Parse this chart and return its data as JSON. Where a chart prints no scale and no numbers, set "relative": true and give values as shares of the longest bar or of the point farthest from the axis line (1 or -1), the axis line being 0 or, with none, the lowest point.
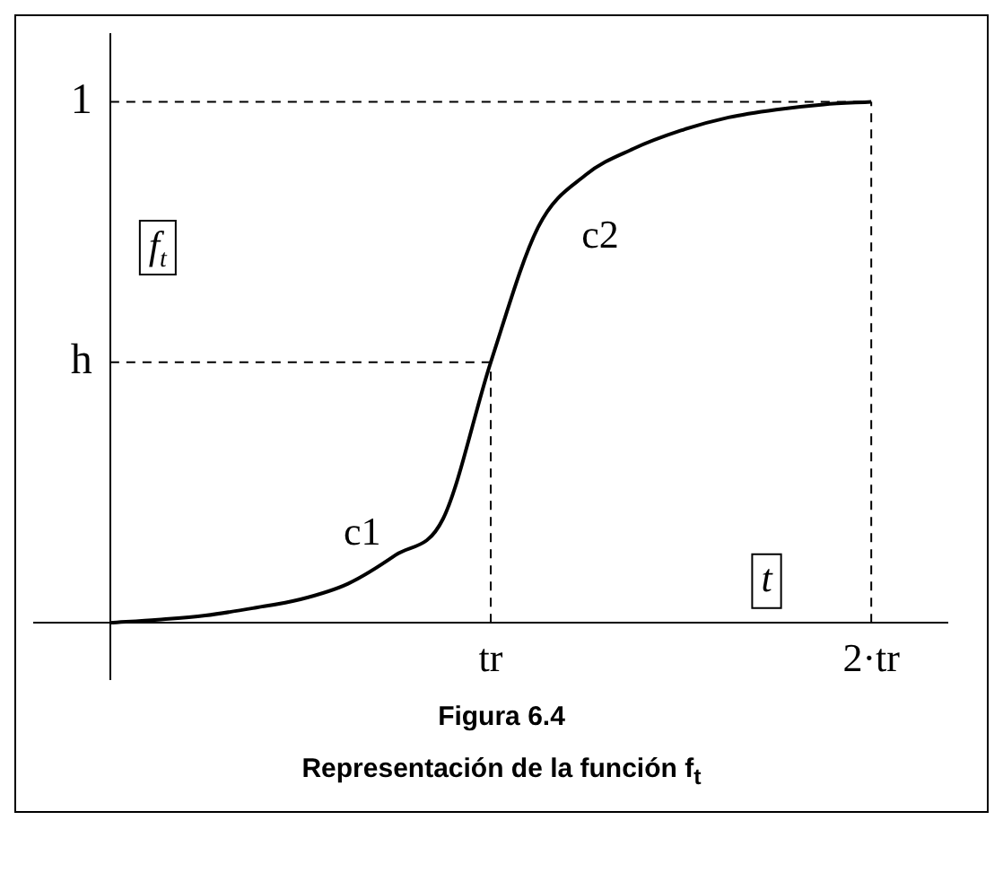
{
  "chart_data": {
    "type": "line",
    "relative": true,
    "xlabel": "t",
    "ylabel": "f$_{t}$",
    "categories": [
      null,
      null,
      null,
      null,
      null,
      null,
      null,
      null,
      "tr",
      null,
      null,
      null,
      null,
      null,
      null,
      null,
      "2·tr"
    ],
    "series": [
      {
        "color": "#000000",
        "values": [
          0,
          0.006,
          0.014,
          0.028,
          0.045,
          0.075,
          0.13,
          0.2,
          0.5,
          0.76,
          0.86,
          0.91,
          0.945,
          0.97,
          0.985,
          0.995,
          1
        ]
      }
    ],
    "ref_lines": [
      {
        "axis": "y",
        "value": 1,
        "label": "1",
        "line_style": "dashed"
      },
      {
        "axis": "y",
        "value": 0.5,
        "label": "h",
        "line_style": "dashed"
      },
      {
        "axis": "x",
        "value": "tr",
        "line_style": "dashed"
      },
      {
        "axis": "x",
        "value": "2·tr",
        "line_style": "dashed"
      }
    ],
    "annotations": [
      "c1",
      "c2",
      "Figura 6.4",
      "Representación de la función f$_{t}$"
    ],
    "grid": false,
    "legend": false,
    "marker": "none",
    "line_style": "solid"
  }
}
